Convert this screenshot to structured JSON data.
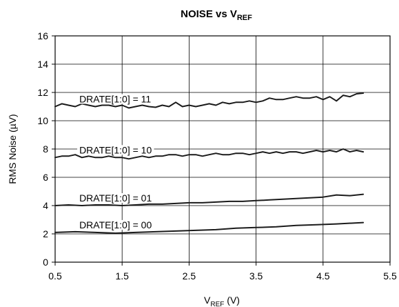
{
  "chart_data": {
    "type": "line",
    "title_main": "NOISE vs V",
    "title_sub": "REF",
    "xlabel_main": "V",
    "xlabel_sub": "REF",
    "xlabel_unit": " (V)",
    "ylabel": "RMS Noise (µV)",
    "xlim": [
      0.5,
      5.5
    ],
    "ylim": [
      0,
      16
    ],
    "x_ticks": [
      0.5,
      1.5,
      2.5,
      3.5,
      4.5,
      5.5
    ],
    "y_ticks": [
      0,
      2,
      4,
      6,
      8,
      10,
      12,
      14,
      16
    ],
    "grid": true,
    "line_color": "#1a1a1a",
    "series": [
      {
        "name": "DRATE[1:0] = 11",
        "x": [
          0.5,
          0.6,
          0.7,
          0.8,
          0.9,
          1.0,
          1.1,
          1.2,
          1.3,
          1.4,
          1.5,
          1.6,
          1.7,
          1.8,
          1.9,
          2.0,
          2.1,
          2.2,
          2.3,
          2.4,
          2.5,
          2.6,
          2.7,
          2.8,
          2.9,
          3.0,
          3.1,
          3.2,
          3.3,
          3.4,
          3.5,
          3.6,
          3.7,
          3.8,
          3.9,
          4.0,
          4.1,
          4.2,
          4.3,
          4.4,
          4.5,
          4.6,
          4.7,
          4.8,
          4.9,
          5.0,
          5.1
        ],
        "y": [
          11.0,
          11.2,
          11.1,
          11.0,
          11.2,
          11.1,
          11.0,
          11.1,
          11.1,
          11.0,
          11.1,
          10.9,
          11.0,
          11.1,
          11.0,
          10.95,
          11.1,
          11.0,
          11.3,
          11.0,
          11.1,
          11.0,
          11.1,
          11.2,
          11.1,
          11.3,
          11.2,
          11.3,
          11.3,
          11.4,
          11.3,
          11.4,
          11.6,
          11.5,
          11.5,
          11.6,
          11.7,
          11.6,
          11.6,
          11.7,
          11.5,
          11.7,
          11.4,
          11.8,
          11.7,
          11.9,
          11.95
        ]
      },
      {
        "name": "DRATE[1:0] = 10",
        "x": [
          0.5,
          0.6,
          0.7,
          0.8,
          0.9,
          1.0,
          1.1,
          1.2,
          1.3,
          1.4,
          1.5,
          1.6,
          1.7,
          1.8,
          1.9,
          2.0,
          2.1,
          2.2,
          2.3,
          2.4,
          2.5,
          2.6,
          2.7,
          2.8,
          2.9,
          3.0,
          3.1,
          3.2,
          3.3,
          3.4,
          3.5,
          3.6,
          3.7,
          3.8,
          3.9,
          4.0,
          4.1,
          4.2,
          4.3,
          4.4,
          4.5,
          4.6,
          4.7,
          4.8,
          4.9,
          5.0,
          5.1
        ],
        "y": [
          7.4,
          7.5,
          7.5,
          7.6,
          7.4,
          7.5,
          7.4,
          7.4,
          7.5,
          7.4,
          7.4,
          7.3,
          7.4,
          7.5,
          7.4,
          7.5,
          7.5,
          7.6,
          7.6,
          7.5,
          7.6,
          7.6,
          7.5,
          7.6,
          7.7,
          7.6,
          7.6,
          7.7,
          7.7,
          7.6,
          7.7,
          7.8,
          7.7,
          7.8,
          7.7,
          7.8,
          7.8,
          7.7,
          7.8,
          7.9,
          7.8,
          7.9,
          7.8,
          8.0,
          7.8,
          7.9,
          7.8
        ]
      },
      {
        "name": "DRATE[1:0] = 01",
        "x": [
          0.5,
          0.7,
          0.9,
          1.1,
          1.3,
          1.5,
          1.7,
          1.9,
          2.1,
          2.3,
          2.5,
          2.7,
          2.9,
          3.1,
          3.3,
          3.5,
          3.7,
          3.9,
          4.1,
          4.3,
          4.5,
          4.7,
          4.9,
          5.1
        ],
        "y": [
          4.0,
          4.05,
          4.0,
          4.05,
          4.05,
          4.0,
          4.05,
          4.1,
          4.1,
          4.15,
          4.2,
          4.2,
          4.25,
          4.3,
          4.3,
          4.35,
          4.4,
          4.45,
          4.5,
          4.55,
          4.6,
          4.75,
          4.7,
          4.8
        ]
      },
      {
        "name": "DRATE[1:0] = 00",
        "x": [
          0.5,
          0.8,
          1.1,
          1.4,
          1.7,
          2.0,
          2.3,
          2.6,
          2.9,
          3.2,
          3.5,
          3.8,
          4.1,
          4.4,
          4.7,
          5.1
        ],
        "y": [
          2.1,
          2.15,
          2.1,
          2.05,
          2.1,
          2.15,
          2.2,
          2.25,
          2.3,
          2.4,
          2.45,
          2.5,
          2.6,
          2.65,
          2.7,
          2.8
        ]
      }
    ]
  }
}
